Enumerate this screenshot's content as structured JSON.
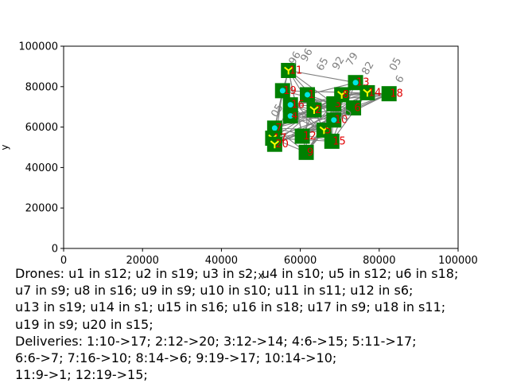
{
  "chart_data": {
    "type": "scatter",
    "title": "",
    "xlabel": "x",
    "ylabel": "y",
    "xlim": [
      0,
      100000
    ],
    "ylim": [
      0,
      100000
    ],
    "xticks": [
      "0",
      "20000",
      "40000",
      "60000",
      "80000",
      "100000"
    ],
    "yticks": [
      "0",
      "20000",
      "40000",
      "60000",
      "80000",
      "100000"
    ],
    "grid": false,
    "colors": {
      "station": "#008000",
      "delivery_point": "#00e5e5",
      "drone_marker": "#ffff00",
      "edge": "#808080",
      "station_label": "#e00000"
    },
    "stations": [
      {
        "label": "1",
        "x": 61800,
        "y": 76000
      },
      {
        "label": "2",
        "x": 63500,
        "y": 68500
      },
      {
        "label": "3",
        "x": 68500,
        "y": 71500
      },
      {
        "label": "4",
        "x": 57500,
        "y": 65500
      },
      {
        "label": "5",
        "x": 66000,
        "y": 58500
      },
      {
        "label": "6",
        "x": 73500,
        "y": 69500
      },
      {
        "label": "7",
        "x": 53500,
        "y": 59500
      },
      {
        "label": "8",
        "x": 70500,
        "y": 76000
      },
      {
        "label": "9",
        "x": 61500,
        "y": 47500
      },
      {
        "label": "10",
        "x": 68500,
        "y": 63500
      },
      {
        "label": "11",
        "x": 57000,
        "y": 88000
      },
      {
        "label": "12",
        "x": 60500,
        "y": 55500
      },
      {
        "label": "13",
        "x": 74000,
        "y": 82000
      },
      {
        "label": "14",
        "x": 77000,
        "y": 77000
      },
      {
        "label": "15",
        "x": 68000,
        "y": 53000
      },
      {
        "label": "16",
        "x": 57500,
        "y": 71000
      },
      {
        "label": "17",
        "x": 53000,
        "y": 54500
      },
      {
        "label": "18",
        "x": 82500,
        "y": 76500
      },
      {
        "label": "19",
        "x": 55500,
        "y": 78000
      },
      {
        "label": "20",
        "x": 53500,
        "y": 51500
      }
    ],
    "edge_labels": [
      {
        "text": "96",
        "x": 58500,
        "y": 90500
      },
      {
        "text": "96",
        "x": 61500,
        "y": 92000
      },
      {
        "text": "65",
        "x": 65500,
        "y": 87500
      },
      {
        "text": "92",
        "x": 69500,
        "y": 88000
      },
      {
        "text": "79",
        "x": 73000,
        "y": 90000
      },
      {
        "text": "82",
        "x": 77000,
        "y": 85500
      },
      {
        "text": "05",
        "x": 84000,
        "y": 87500
      },
      {
        "text": "6",
        "x": 85500,
        "y": 81500
      },
      {
        "text": "05",
        "x": 54000,
        "y": 64500
      },
      {
        "text": "10",
        "x": 71500,
        "y": 62000
      }
    ]
  },
  "caption": {
    "lines": [
      "Drones: u1 in s12; u2 in s19; u3 in s2; u4 in s10; u5 in s12; u6 in s18;",
      "u7 in s9; u8 in s16; u9 in s9; u10 in s10; u11 in s11; u12 in s6;",
      "u13 in s19; u14 in s1; u15 in s16; u16 in s18; u17 in s9; u18 in s11;",
      "u19 in s9; u20 in s15;",
      "Deliveries: 1:10->17; 2:12->20; 3:12->14; 4:6->15; 5:11->17;",
      "6:6->7; 7:16->10; 8:14->6; 9:19->17; 10:14->10;",
      "11:9->1; 12:19->15;"
    ]
  }
}
